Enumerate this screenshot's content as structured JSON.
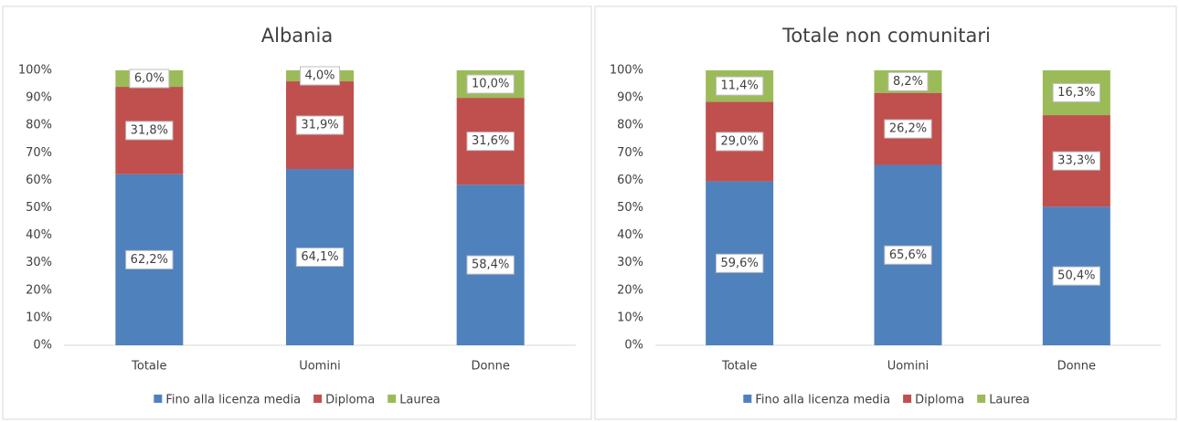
{
  "chart_data": [
    {
      "type": "stacked_bar",
      "title": "Albania",
      "categories": [
        "Totale",
        "Uomini",
        "Donne"
      ],
      "series": [
        {
          "name": "Fino alla licenza media",
          "color": "#4f81bd",
          "values": [
            62.2,
            64.1,
            58.4
          ],
          "value_labels": [
            "62,2%",
            "64,1%",
            "58,4%"
          ]
        },
        {
          "name": "Diploma",
          "color": "#c0504d",
          "values": [
            31.8,
            31.9,
            31.6
          ],
          "value_labels": [
            "31,8%",
            "31,9%",
            "31,6%"
          ]
        },
        {
          "name": "Laurea",
          "color": "#9bbb59",
          "values": [
            6.0,
            4.0,
            10.0
          ],
          "value_labels": [
            "6,0%",
            "4,0%",
            "10,0%"
          ]
        }
      ],
      "ylim": [
        0,
        100
      ],
      "yticks": [
        {
          "value": 0,
          "label": "0%"
        },
        {
          "value": 10,
          "label": "10%"
        },
        {
          "value": 20,
          "label": "20%"
        },
        {
          "value": 30,
          "label": "30%"
        },
        {
          "value": 40,
          "label": "40%"
        },
        {
          "value": 50,
          "label": "50%"
        },
        {
          "value": 60,
          "label": "60%"
        },
        {
          "value": 70,
          "label": "70%"
        },
        {
          "value": 80,
          "label": "80%"
        },
        {
          "value": 90,
          "label": "90%"
        },
        {
          "value": 100,
          "label": "100%"
        }
      ],
      "grid": false,
      "legend": "bottom"
    },
    {
      "type": "stacked_bar",
      "title": "Totale non comunitari",
      "categories": [
        "Totale",
        "Uomini",
        "Donne"
      ],
      "series": [
        {
          "name": "Fino alla licenza media",
          "color": "#4f81bd",
          "values": [
            59.6,
            65.6,
            50.4
          ],
          "value_labels": [
            "59,6%",
            "65,6%",
            "50,4%"
          ]
        },
        {
          "name": "Diploma",
          "color": "#c0504d",
          "values": [
            29.0,
            26.2,
            33.3
          ],
          "value_labels": [
            "29,0%",
            "26,2%",
            "33,3%"
          ]
        },
        {
          "name": "Laurea",
          "color": "#9bbb59",
          "values": [
            11.4,
            8.2,
            16.3
          ],
          "value_labels": [
            "11,4%",
            "8,2%",
            "16,3%"
          ]
        }
      ],
      "ylim": [
        0,
        100
      ],
      "yticks": [
        {
          "value": 0,
          "label": "0%"
        },
        {
          "value": 10,
          "label": "10%"
        },
        {
          "value": 20,
          "label": "20%"
        },
        {
          "value": 30,
          "label": "30%"
        },
        {
          "value": 40,
          "label": "40%"
        },
        {
          "value": 50,
          "label": "50%"
        },
        {
          "value": 60,
          "label": "60%"
        },
        {
          "value": 70,
          "label": "70%"
        },
        {
          "value": 80,
          "label": "80%"
        },
        {
          "value": 90,
          "label": "90%"
        },
        {
          "value": 100,
          "label": "100%"
        }
      ],
      "grid": false,
      "legend": "bottom"
    }
  ]
}
